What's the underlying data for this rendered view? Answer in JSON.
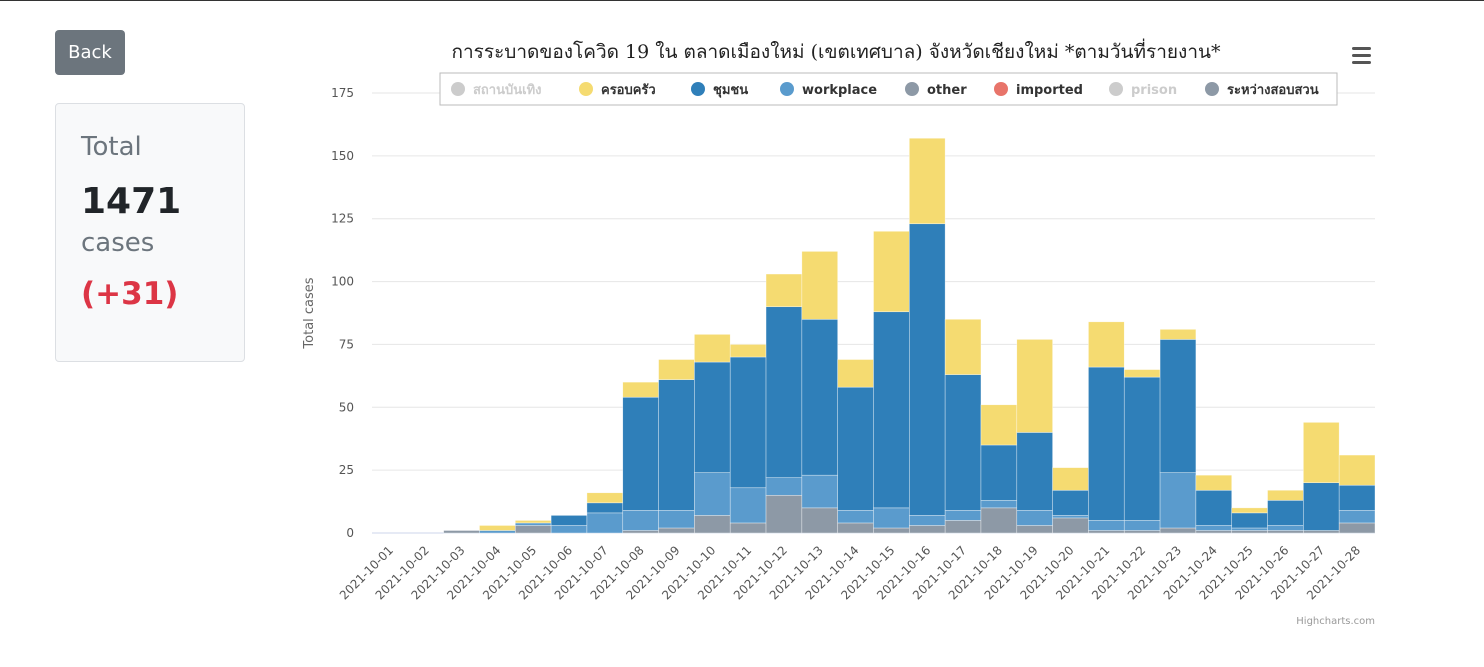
{
  "back_label": "Back",
  "summary": {
    "label": "Total",
    "total": "1471",
    "unit": "cases",
    "delta": "(+31)"
  },
  "credit": "Highcharts.com",
  "chart_data": {
    "type": "bar",
    "stacked": true,
    "title": "การระบาดของโควิด 19 ใน ตลาดเมืองใหม่ (เขตเทศบาล) จังหวัดเชียงใหม่ *ตามวันที่รายงาน*",
    "xlabel": "",
    "ylabel": "Total cases",
    "ylim": [
      0,
      175
    ],
    "yticks": [
      0,
      25,
      50,
      75,
      100,
      125,
      150,
      175
    ],
    "grid": true,
    "legend_position": "top-center",
    "categories": [
      "2021-10-01",
      "2021-10-02",
      "2021-10-03",
      "2021-10-04",
      "2021-10-05",
      "2021-10-06",
      "2021-10-07",
      "2021-10-08",
      "2021-10-09",
      "2021-10-10",
      "2021-10-11",
      "2021-10-12",
      "2021-10-13",
      "2021-10-14",
      "2021-10-15",
      "2021-10-16",
      "2021-10-17",
      "2021-10-18",
      "2021-10-19",
      "2021-10-20",
      "2021-10-21",
      "2021-10-22",
      "2021-10-23",
      "2021-10-24",
      "2021-10-25",
      "2021-10-26",
      "2021-10-27",
      "2021-10-28"
    ],
    "series": [
      {
        "name": "สถานบันเทิง",
        "color": "#cccccc",
        "hidden": true,
        "values": [
          0,
          0,
          0,
          0,
          0,
          0,
          0,
          0,
          0,
          0,
          0,
          0,
          0,
          0,
          0,
          0,
          0,
          0,
          0,
          0,
          0,
          0,
          0,
          0,
          0,
          0,
          0,
          0
        ]
      },
      {
        "name": "ระหว่างสอบสวน",
        "color": "#8d99a6",
        "hidden": false,
        "values": [
          0,
          0,
          1,
          0,
          3,
          0,
          0,
          1,
          2,
          7,
          4,
          15,
          10,
          4,
          2,
          3,
          5,
          10,
          3,
          6,
          1,
          1,
          2,
          1,
          1,
          1,
          1,
          4
        ]
      },
      {
        "name": "prison",
        "color": "#cccccc",
        "hidden": true,
        "values": [
          0,
          0,
          0,
          0,
          0,
          0,
          0,
          0,
          0,
          0,
          0,
          0,
          0,
          0,
          0,
          0,
          0,
          0,
          0,
          0,
          0,
          0,
          0,
          0,
          0,
          0,
          0,
          0
        ]
      },
      {
        "name": "imported",
        "color": "#e8746a",
        "hidden": false,
        "values": [
          0,
          0,
          0,
          0,
          0,
          0,
          0,
          0,
          0,
          0,
          0,
          0,
          0,
          0,
          0,
          0,
          0,
          0,
          0,
          0,
          0,
          0,
          0,
          0,
          0,
          0,
          0,
          0
        ]
      },
      {
        "name": "other",
        "color": "#8d99a6",
        "hidden": false,
        "values": [
          0,
          0,
          0,
          0,
          0,
          0,
          0,
          0,
          0,
          0,
          0,
          0,
          0,
          0,
          0,
          0,
          0,
          0,
          0,
          0,
          0,
          0,
          0,
          0,
          0,
          0,
          0,
          0
        ]
      },
      {
        "name": "workplace",
        "color": "#5a9bcd",
        "hidden": false,
        "values": [
          0,
          0,
          0,
          1,
          1,
          3,
          8,
          8,
          7,
          17,
          14,
          7,
          13,
          5,
          8,
          4,
          4,
          3,
          6,
          1,
          4,
          4,
          22,
          2,
          1,
          2,
          0,
          5
        ]
      },
      {
        "name": "ชุมชน",
        "color": "#2f7fb9",
        "hidden": false,
        "values": [
          0,
          0,
          0,
          0,
          0,
          4,
          4,
          45,
          52,
          44,
          52,
          68,
          62,
          49,
          78,
          116,
          54,
          22,
          31,
          10,
          61,
          57,
          53,
          14,
          6,
          10,
          19,
          10
        ]
      },
      {
        "name": "ครอบครัว",
        "color": "#f5db71",
        "hidden": false,
        "values": [
          0,
          0,
          0,
          2,
          1,
          0,
          4,
          6,
          8,
          11,
          5,
          13,
          27,
          11,
          32,
          34,
          22,
          16,
          37,
          9,
          18,
          3,
          4,
          6,
          2,
          4,
          24,
          12
        ]
      }
    ]
  }
}
